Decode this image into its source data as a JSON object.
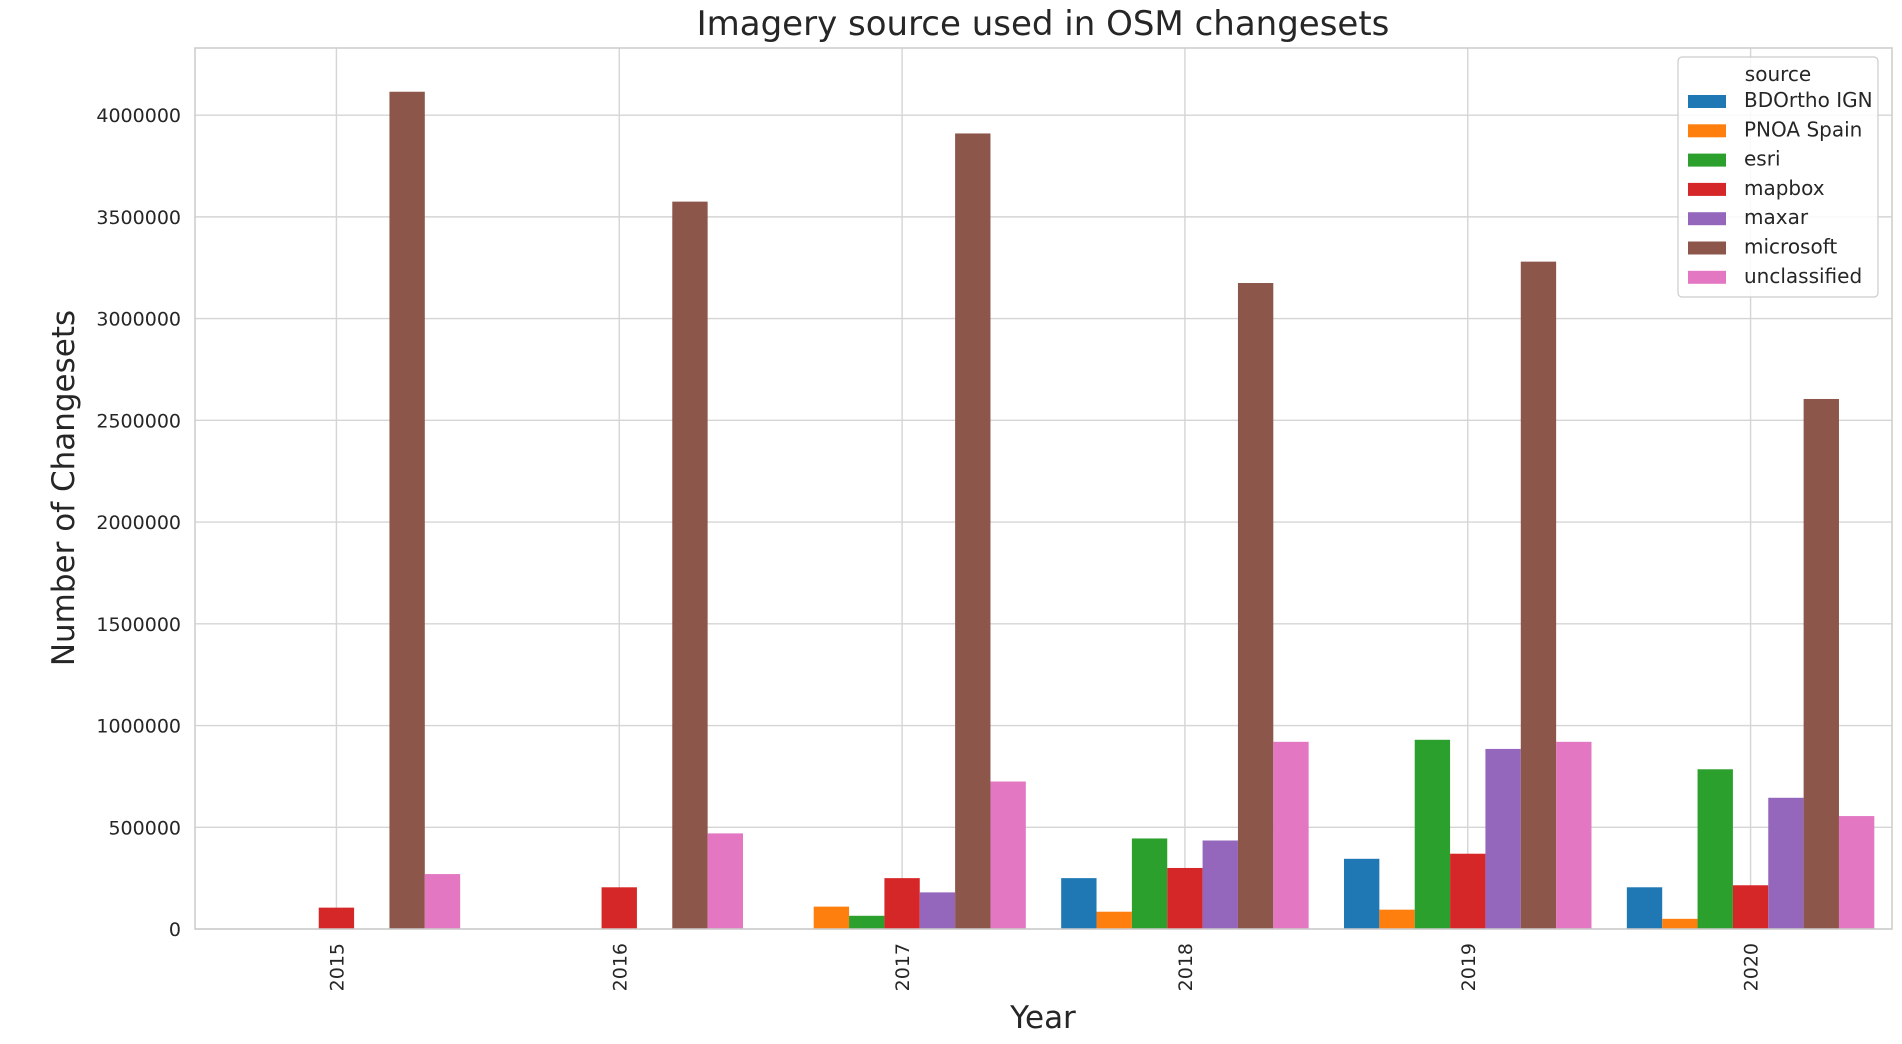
{
  "chart_data": {
    "type": "bar",
    "title": "Imagery source used in OSM changesets",
    "xlabel": "Year",
    "ylabel": "Number of Changesets",
    "categories": [
      "2015",
      "2016",
      "2017",
      "2018",
      "2019",
      "2020"
    ],
    "ylim": [
      0,
      4330000
    ],
    "yticks": [
      0,
      500000,
      1000000,
      1500000,
      2000000,
      2500000,
      3000000,
      3500000,
      4000000
    ],
    "ytick_labels": [
      "0",
      "500000",
      "1000000",
      "1500000",
      "2000000",
      "2500000",
      "3000000",
      "3500000",
      "4000000"
    ],
    "grid": true,
    "legend": {
      "title": "source",
      "placement": "top-right"
    },
    "series": [
      {
        "name": "BDOrtho IGN",
        "color": "#1f77b4",
        "values": [
          0,
          0,
          0,
          250000,
          345000,
          205000
        ]
      },
      {
        "name": "PNOA Spain",
        "color": "#ff7f0e",
        "values": [
          0,
          0,
          110000,
          85000,
          95000,
          50000
        ]
      },
      {
        "name": "esri",
        "color": "#2ca02c",
        "values": [
          0,
          0,
          65000,
          445000,
          930000,
          785000
        ]
      },
      {
        "name": "mapbox",
        "color": "#d62728",
        "values": [
          105000,
          205000,
          250000,
          300000,
          370000,
          215000
        ]
      },
      {
        "name": "maxar",
        "color": "#9467bd",
        "values": [
          0,
          0,
          180000,
          435000,
          885000,
          645000
        ]
      },
      {
        "name": "microsoft",
        "color": "#8c564b",
        "values": [
          4115000,
          3575000,
          3910000,
          3175000,
          3280000,
          2605000
        ]
      },
      {
        "name": "unclassified",
        "color": "#e377c2",
        "values": [
          270000,
          470000,
          725000,
          920000,
          920000,
          555000
        ]
      }
    ]
  }
}
